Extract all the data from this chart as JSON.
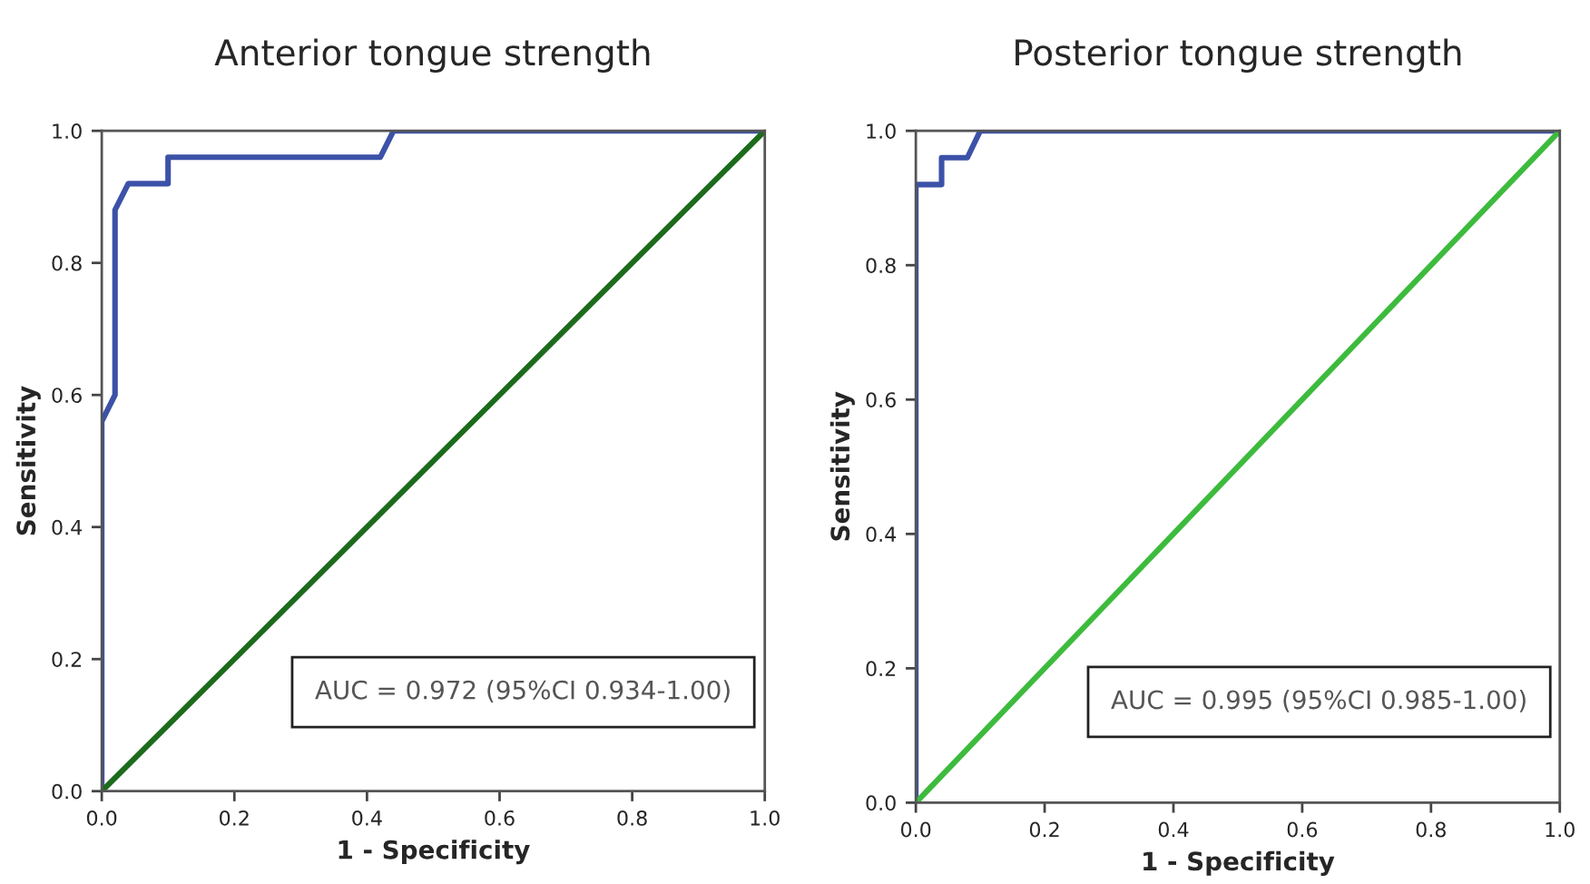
{
  "chart_data": [
    {
      "type": "line",
      "title": "Anterior tongue strength",
      "xlabel": "1 - Specificity",
      "ylabel": "Sensitivity",
      "series": [
        {
          "color": "#3c52a8",
          "x": [
            0,
            0,
            0.02,
            0.02,
            0.04,
            0.1,
            0.1,
            0.42,
            0.44,
            1.0
          ],
          "values": [
            0,
            0.56,
            0.6,
            0.88,
            0.92,
            0.92,
            0.96,
            0.96,
            1.0,
            1.0
          ]
        },
        {
          "color": "#1c6b1c",
          "x": [
            0,
            1.0
          ],
          "values": [
            0,
            1.0
          ]
        }
      ],
      "xlim": [
        0,
        1.0
      ],
      "ylim": [
        0,
        1.0
      ],
      "xticks": [
        {
          "value": 0,
          "label": "0.0"
        },
        {
          "value": 0.2,
          "label": "0.2"
        },
        {
          "value": 0.4,
          "label": "0.4"
        },
        {
          "value": 0.6,
          "label": "0.6"
        },
        {
          "value": 0.8,
          "label": "0.8"
        },
        {
          "value": 1.0,
          "label": "1.0"
        }
      ],
      "yticks": [
        {
          "value": 0,
          "label": "0.0"
        },
        {
          "value": 0.2,
          "label": "0.2"
        },
        {
          "value": 0.4,
          "label": "0.4"
        },
        {
          "value": 0.6,
          "label": "0.6"
        },
        {
          "value": 0.8,
          "label": "0.8"
        },
        {
          "value": 1.0,
          "label": "1.0"
        }
      ],
      "grid": false,
      "legend": false,
      "annotations": [
        "AUC = 0.972 (95%CI 0.934-1.00)"
      ]
    },
    {
      "type": "line",
      "title": "Posterior tongue strength",
      "xlabel": "1 - Specificity",
      "ylabel": "Sensitivity",
      "series": [
        {
          "color": "#3c52a8",
          "x": [
            0,
            0,
            0.04,
            0.04,
            0.08,
            0.1,
            1.0
          ],
          "values": [
            0,
            0.92,
            0.92,
            0.96,
            0.96,
            1.0,
            1.0
          ]
        },
        {
          "color": "#3dbb3d",
          "x": [
            0,
            1.0
          ],
          "values": [
            0,
            1.0
          ]
        }
      ],
      "xlim": [
        0,
        1.0
      ],
      "ylim": [
        0,
        1.0
      ],
      "xticks": [
        {
          "value": 0,
          "label": "0.0"
        },
        {
          "value": 0.2,
          "label": "0.2"
        },
        {
          "value": 0.4,
          "label": "0.4"
        },
        {
          "value": 0.6,
          "label": "0.6"
        },
        {
          "value": 0.8,
          "label": "0.8"
        },
        {
          "value": 1.0,
          "label": "1.0"
        }
      ],
      "yticks": [
        {
          "value": 0,
          "label": "0.0"
        },
        {
          "value": 0.2,
          "label": "0.2"
        },
        {
          "value": 0.4,
          "label": "0.4"
        },
        {
          "value": 0.6,
          "label": "0.6"
        },
        {
          "value": 0.8,
          "label": "0.8"
        },
        {
          "value": 1.0,
          "label": "1.0"
        }
      ],
      "grid": false,
      "legend": false,
      "annotations": [
        "AUC = 0.995 (95%CI 0.985-1.00)"
      ]
    }
  ]
}
